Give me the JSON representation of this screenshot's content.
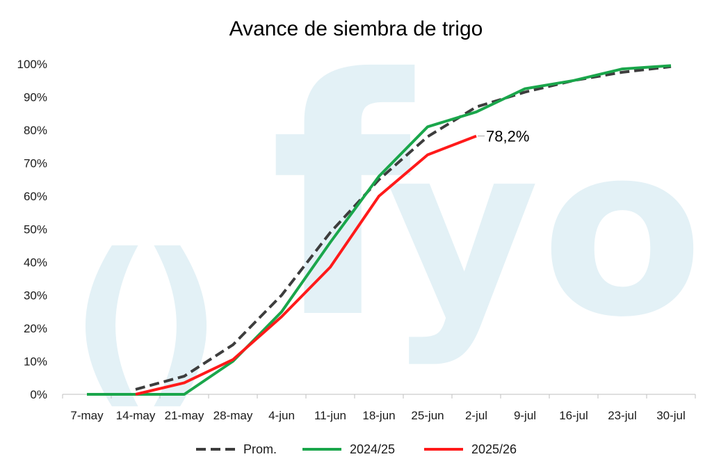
{
  "chart_data": {
    "type": "line",
    "title": "Avance de siembra de trigo",
    "xlabel": "",
    "ylabel": "",
    "categories": [
      "7-may",
      "14-may",
      "21-may",
      "28-may",
      "4-jun",
      "11-jun",
      "18-jun",
      "25-jun",
      "2-jul",
      "9-jul",
      "16-jul",
      "23-jul",
      "30-jul"
    ],
    "y_ticks": [
      "0%",
      "10%",
      "20%",
      "30%",
      "40%",
      "50%",
      "60%",
      "70%",
      "80%",
      "90%",
      "100%"
    ],
    "ylim": [
      0,
      100
    ],
    "grid": false,
    "legend_position": "bottom",
    "series": [
      {
        "name": "Prom.",
        "color": "#3d3d3d",
        "style": "dashed",
        "values": [
          null,
          1.5,
          5.5,
          15,
          30,
          49,
          65,
          78,
          87,
          91.5,
          95,
          97.5,
          99.2
        ]
      },
      {
        "name": "2024/25",
        "color": "#1aa64b",
        "style": "solid",
        "values": [
          0,
          0,
          0,
          10,
          25,
          46,
          66,
          81,
          85.5,
          92.5,
          95,
          98.5,
          99.5
        ]
      },
      {
        "name": "2025/26",
        "color": "#ff1a1a",
        "style": "solid",
        "values": [
          null,
          0,
          3.5,
          10.5,
          23.5,
          38.5,
          60,
          72.5,
          78.2,
          null,
          null,
          null,
          null
        ]
      }
    ],
    "annotations": [
      {
        "text": "78,2%",
        "series": "2025/26",
        "category": "2-jul"
      }
    ],
    "watermark": {
      "text": "()fyo",
      "color": "#e3f1f6"
    }
  }
}
